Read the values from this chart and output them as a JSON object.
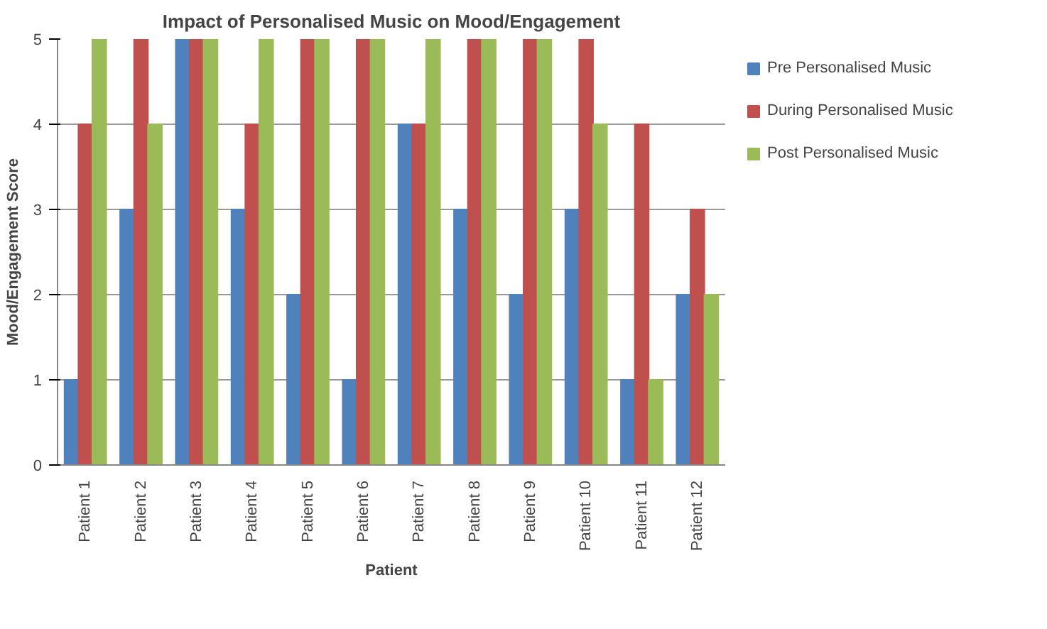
{
  "chart_data": {
    "type": "bar",
    "title": "Impact of Personalised Music on Mood/Engagement",
    "xlabel": "Patient",
    "ylabel": "Mood/Engagement Score",
    "categories": [
      "Patient 1",
      "Patient 2",
      "Patient 3",
      "Patient 4",
      "Patient 5",
      "Patient 6",
      "Patient 7",
      "Patient 8",
      "Patient 9",
      "Patient 10",
      "Patient 11",
      "Patient 12"
    ],
    "series": [
      {
        "name": "Pre Personalised Music",
        "color": "#4f81bd",
        "values": [
          1,
          3,
          5,
          3,
          2,
          1,
          4,
          3,
          2,
          3,
          1,
          2
        ]
      },
      {
        "name": "During Personalised Music",
        "color": "#c0504d",
        "values": [
          4,
          5,
          5,
          4,
          5,
          5,
          4,
          5,
          5,
          5,
          4,
          3
        ]
      },
      {
        "name": "Post Personalised Music",
        "color": "#9bbb59",
        "values": [
          5,
          4,
          5,
          5,
          5,
          5,
          5,
          5,
          5,
          4,
          1,
          2
        ]
      }
    ],
    "ylim": [
      0,
      5
    ],
    "yticks": [
      0,
      1,
      2,
      3,
      4,
      5
    ],
    "grid": "y",
    "legend": "right"
  }
}
